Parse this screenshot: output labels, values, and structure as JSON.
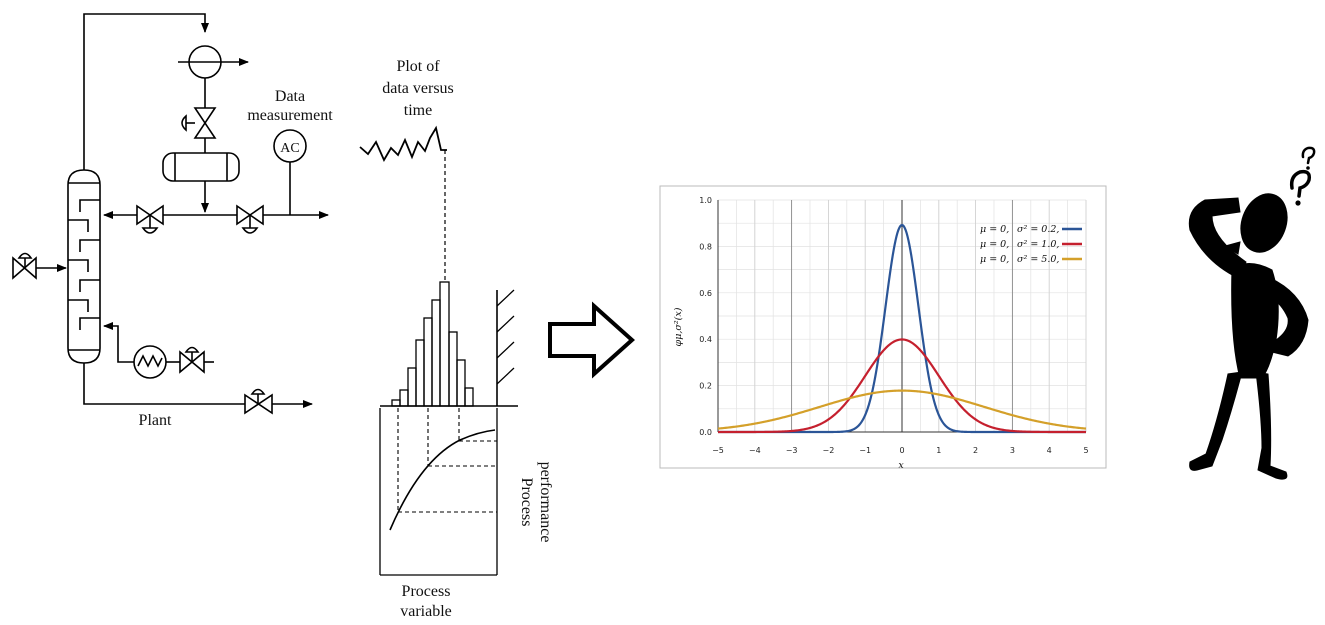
{
  "plant": {
    "data_measurement": [
      "Data",
      "measurement"
    ],
    "controller": "AC",
    "plot_of": [
      "Plot of",
      "data versus",
      "time"
    ],
    "plant_label": "Plant",
    "process_variable": [
      "Process",
      "variable"
    ],
    "process_performance": [
      "Process",
      "performance"
    ]
  },
  "chart_data": {
    "type": "line",
    "title": "",
    "xlabel": "x",
    "ylabel": "φμ,σ²(x)",
    "xlim": [
      -5,
      5
    ],
    "ylim": [
      0,
      1.0
    ],
    "grid": true,
    "legend_placement": "top-right",
    "x_ticks": [
      "−5",
      "−4",
      "−3",
      "−2",
      "−1",
      "0",
      "1",
      "2",
      "3",
      "4",
      "5"
    ],
    "y_ticks": [
      "0.0",
      "0.2",
      "0.4",
      "0.6",
      "0.8",
      "1.0"
    ],
    "series": [
      {
        "legend_mu": "μ = 0,",
        "legend_var": "σ² = 0.2,",
        "mu": 0,
        "variance": 0.2,
        "color": "#2b5597"
      },
      {
        "legend_mu": "μ = 0,",
        "legend_var": "σ² = 1.0,",
        "mu": 0,
        "variance": 1.0,
        "color": "#c5202e"
      },
      {
        "legend_mu": "μ = 0,",
        "legend_var": "σ² = 5.0,",
        "mu": 0,
        "variance": 5.0,
        "color": "#d4a02a"
      }
    ]
  },
  "icons": {
    "arrow": "hollow-right-arrow-icon",
    "thinker": "confused-person-icon"
  }
}
